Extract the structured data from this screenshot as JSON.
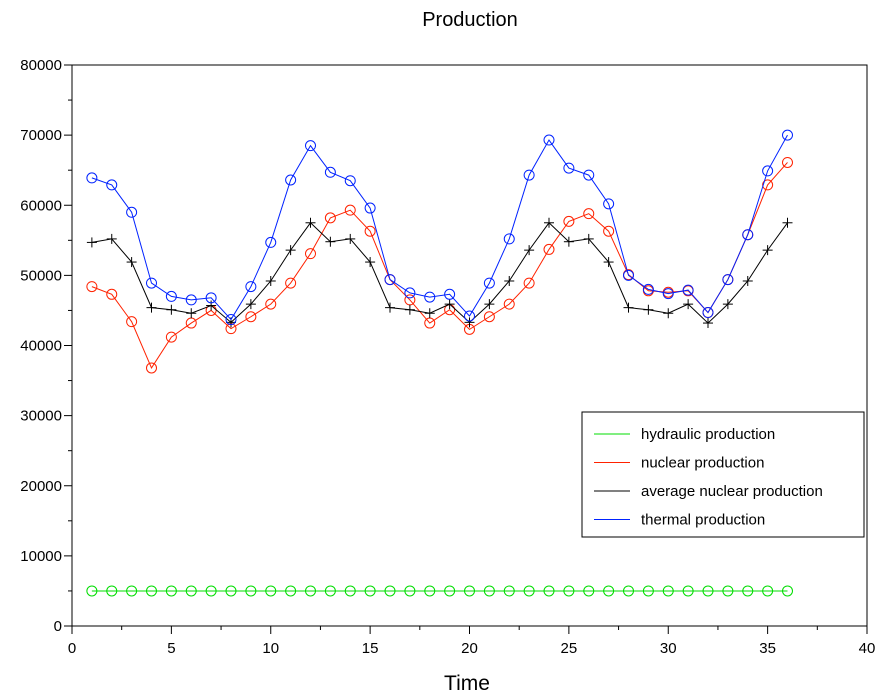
{
  "chart_data": {
    "type": "line",
    "title": "Production",
    "xlabel": "Time",
    "ylabel": "",
    "xlim": [
      0,
      40
    ],
    "ylim": [
      0,
      80000
    ],
    "xticks": [
      0,
      5,
      10,
      15,
      20,
      25,
      30,
      35,
      40
    ],
    "yticks": [
      0,
      10000,
      20000,
      30000,
      40000,
      50000,
      60000,
      70000,
      80000
    ],
    "grid": false,
    "legend_position": "lower-right",
    "x": [
      1,
      2,
      3,
      4,
      5,
      6,
      7,
      8,
      9,
      10,
      11,
      12,
      13,
      14,
      15,
      16,
      17,
      18,
      19,
      20,
      21,
      22,
      23,
      24,
      25,
      26,
      27,
      28,
      29,
      30,
      31,
      32,
      33,
      34,
      35,
      36
    ],
    "series": [
      {
        "name": "hydraulic production",
        "color": "#00dd00",
        "marker": "circle",
        "values": [
          5000,
          5000,
          5000,
          5000,
          5000,
          5000,
          5000,
          5000,
          5000,
          5000,
          5000,
          5000,
          5000,
          5000,
          5000,
          5000,
          5000,
          5000,
          5000,
          5000,
          5000,
          5000,
          5000,
          5000,
          5000,
          5000,
          5000,
          5000,
          5000,
          5000,
          5000,
          5000,
          5000,
          5000,
          5000,
          5000
        ]
      },
      {
        "name": "nuclear production",
        "color": "#ff2200",
        "marker": "circle",
        "values": [
          48400,
          47300,
          43400,
          36800,
          41200,
          43200,
          45000,
          42400,
          44100,
          45900,
          48900,
          53100,
          58200,
          59300,
          56300,
          49400,
          46500,
          43200,
          45100,
          42300,
          44100,
          45900,
          48900,
          53700,
          57700,
          58800,
          56300,
          50100,
          47800,
          47600,
          47800,
          44700,
          49400,
          55800,
          62900,
          66100
        ]
      },
      {
        "name": "average nuclear production",
        "color": "#000000",
        "marker": "plus",
        "values": [
          54700,
          55200,
          51900,
          45400,
          45100,
          44600,
          45700,
          43300,
          45900,
          49200,
          53600,
          57500,
          54800,
          55200,
          51900,
          45400,
          45100,
          44600,
          45900,
          43300,
          45900,
          49200,
          53600,
          57500,
          54800,
          55200,
          51900,
          45400,
          45100,
          44600,
          45900,
          43200,
          45900,
          49200,
          53600,
          57500
        ]
      },
      {
        "name": "thermal production",
        "color": "#0022ff",
        "marker": "circle",
        "values": [
          63900,
          62900,
          59000,
          48900,
          47000,
          46500,
          46800,
          43700,
          48400,
          54700,
          63600,
          68500,
          64700,
          63500,
          59600,
          49400,
          47500,
          46900,
          47300,
          44200,
          48900,
          55200,
          64300,
          69300,
          65300,
          64300,
          60200,
          50000,
          48000,
          47400,
          47900,
          44700,
          49400,
          55800,
          64900,
          70000
        ]
      }
    ]
  }
}
